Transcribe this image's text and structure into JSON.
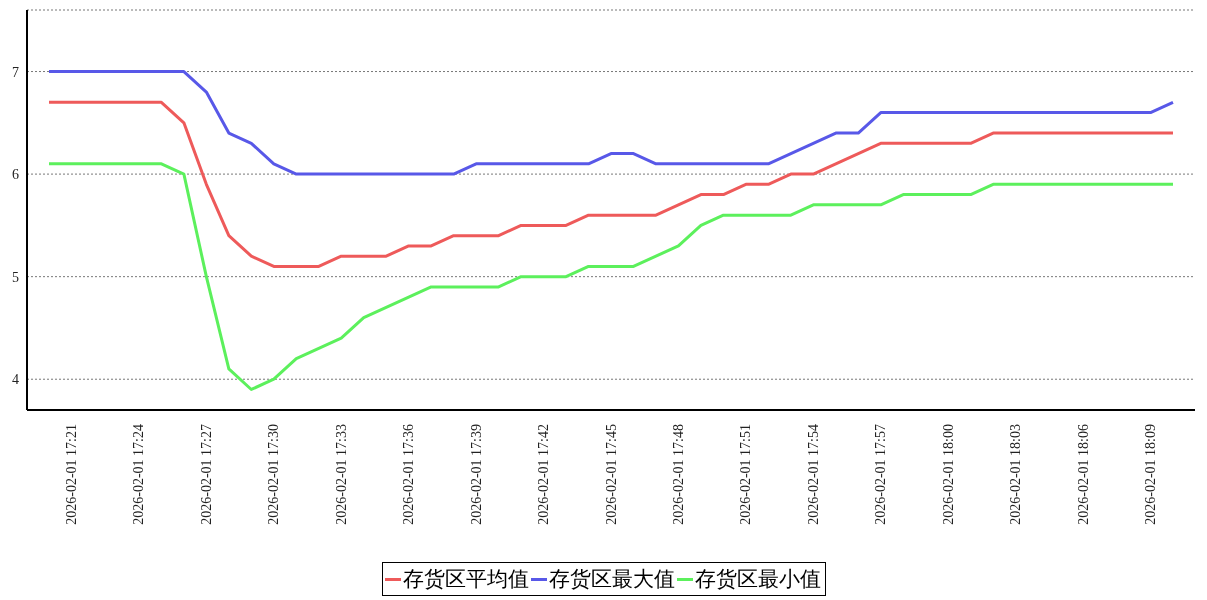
{
  "chart_data": {
    "type": "line",
    "categories": [
      null,
      "2026-02-01 17:21",
      null,
      null,
      "2026-02-01 17:24",
      null,
      null,
      "2026-02-01 17:27",
      null,
      null,
      "2026-02-01 17:30",
      null,
      null,
      "2026-02-01 17:33",
      null,
      null,
      "2026-02-01 17:36",
      null,
      null,
      "2026-02-01 17:39",
      null,
      null,
      "2026-02-01 17:42",
      null,
      null,
      "2026-02-01 17:45",
      null,
      null,
      "2026-02-01 17:48",
      null,
      null,
      "2026-02-01 17:51",
      null,
      null,
      "2026-02-01 17:54",
      null,
      null,
      "2026-02-01 17:57",
      null,
      null,
      "2026-02-01 18:00",
      null,
      null,
      "2026-02-01 18:03",
      null,
      null,
      "2026-02-01 18:06",
      null,
      null,
      "2026-02-01 18:09",
      null
    ],
    "series": [
      {
        "name": "存货区平均值",
        "color": "#ee5a5a",
        "values": [
          6.7,
          6.7,
          6.7,
          6.7,
          6.7,
          6.7,
          6.5,
          5.9,
          5.4,
          5.2,
          5.1,
          5.1,
          5.1,
          5.2,
          5.2,
          5.2,
          5.3,
          5.3,
          5.4,
          5.4,
          5.4,
          5.5,
          5.5,
          5.5,
          5.6,
          5.6,
          5.6,
          5.6,
          5.7,
          5.8,
          5.8,
          5.9,
          5.9,
          6.0,
          6.0,
          6.1,
          6.2,
          6.3,
          6.3,
          6.3,
          6.3,
          6.3,
          6.4,
          6.4,
          6.4,
          6.4,
          6.4,
          6.4,
          6.4,
          6.4,
          6.4
        ]
      },
      {
        "name": "存货区最大值",
        "color": "#5858e8",
        "values": [
          7,
          7,
          7,
          7,
          7,
          7,
          7,
          6.8,
          6.4,
          6.3,
          6.1,
          6.0,
          6.0,
          6.0,
          6.0,
          6.0,
          6.0,
          6.0,
          6.0,
          6.1,
          6.1,
          6.1,
          6.1,
          6.1,
          6.1,
          6.2,
          6.2,
          6.1,
          6.1,
          6.1,
          6.1,
          6.1,
          6.1,
          6.2,
          6.3,
          6.4,
          6.4,
          6.6,
          6.6,
          6.6,
          6.6,
          6.6,
          6.6,
          6.6,
          6.6,
          6.6,
          6.6,
          6.6,
          6.6,
          6.6,
          6.7
        ]
      },
      {
        "name": "存货区最小值",
        "color": "#5cf05c",
        "values": [
          6.1,
          6.1,
          6.1,
          6.1,
          6.1,
          6.1,
          6.0,
          5.0,
          4.1,
          3.9,
          4.0,
          4.2,
          4.3,
          4.4,
          4.6,
          4.7,
          4.8,
          4.9,
          4.9,
          4.9,
          4.9,
          5.0,
          5.0,
          5.0,
          5.1,
          5.1,
          5.1,
          5.2,
          5.3,
          5.5,
          5.6,
          5.6,
          5.6,
          5.6,
          5.7,
          5.7,
          5.7,
          5.7,
          5.8,
          5.8,
          5.8,
          5.8,
          5.9,
          5.9,
          5.9,
          5.9,
          5.9,
          5.9,
          5.9,
          5.9,
          5.9
        ]
      }
    ],
    "ylim": [
      3.7,
      7.6
    ],
    "yticks": [
      4,
      5,
      6,
      7
    ],
    "grid": "y",
    "legend": "bottom",
    "marker": "none",
    "line_style": "solid"
  }
}
